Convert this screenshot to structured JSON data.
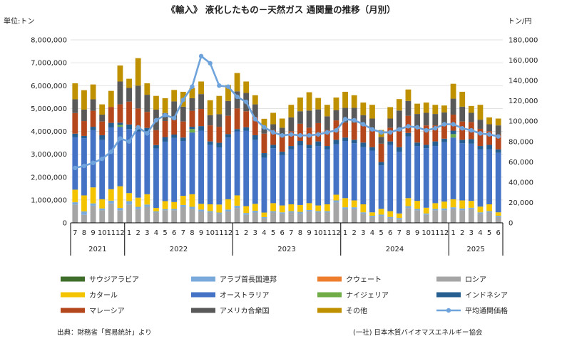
{
  "chart_data": {
    "type": "bar",
    "title": "《輸入》 液化したもの－天然ガス 通関量の推移（月別）",
    "ylabel_left": "単位:トン",
    "ylabel_right": "トン/円",
    "ylim_left": [
      0,
      8000000
    ],
    "ylim_right": [
      0,
      180000
    ],
    "left_ticks": [
      "0",
      "1,000,000",
      "2,000,000",
      "3,000,000",
      "4,000,000",
      "5,000,000",
      "6,000,000",
      "7,000,000",
      "8,000,000"
    ],
    "right_ticks": [
      "0",
      "20,000",
      "40,000",
      "60,000",
      "80,000",
      "100,000",
      "120,000",
      "140,000",
      "160,000",
      "180,000"
    ],
    "categories": [
      "7",
      "8",
      "9",
      "10",
      "11",
      "12",
      "1",
      "2",
      "3",
      "4",
      "5",
      "6",
      "7",
      "8",
      "9",
      "10",
      "11",
      "12",
      "1",
      "2",
      "3",
      "4",
      "5",
      "6",
      "7",
      "8",
      "9",
      "10",
      "11",
      "12",
      "1",
      "2",
      "3",
      "4",
      "5",
      "6",
      "7",
      "8",
      "9",
      "10",
      "11",
      "12",
      "1",
      "2",
      "3",
      "4",
      "5",
      "6"
    ],
    "years": [
      {
        "label": "2021",
        "count": 6
      },
      {
        "label": "2022",
        "count": 12
      },
      {
        "label": "2023",
        "count": 12
      },
      {
        "label": "2024",
        "count": 12
      },
      {
        "label": "2025",
        "count": 6
      }
    ],
    "stack_order": [
      "ロシア",
      "アラブ首長国連邦",
      "カタール",
      "オーストラリア",
      "サウジアラビア",
      "ナイジェリア",
      "インドネシア",
      "マレーシア",
      "アメリカ合衆国",
      "その他"
    ],
    "series": [
      {
        "name": "サウジアラビア",
        "color": "#3f6e2a",
        "values": [
          0,
          0,
          0,
          0,
          0,
          0,
          0,
          0,
          0,
          0,
          0,
          0,
          0,
          0,
          0,
          0,
          0,
          0,
          0,
          0,
          0,
          0,
          0,
          0,
          0,
          0,
          0,
          0,
          0,
          0,
          0,
          0,
          0,
          0,
          0,
          0,
          0,
          0,
          0,
          0,
          0,
          0,
          0,
          0,
          0,
          0,
          0,
          0
        ]
      },
      {
        "name": "アラブ首長国連邦",
        "color": "#7aa9dc",
        "values": [
          100000,
          150000,
          100000,
          80000,
          120000,
          100000,
          150000,
          100000,
          100000,
          50000,
          50000,
          60000,
          80000,
          100000,
          80000,
          60000,
          50000,
          80000,
          100000,
          80000,
          80000,
          50000,
          60000,
          60000,
          60000,
          80000,
          60000,
          60000,
          60000,
          80000,
          80000,
          80000,
          60000,
          60000,
          60000,
          60000,
          60000,
          80000,
          60000,
          60000,
          60000,
          80000,
          80000,
          80000,
          60000,
          60000,
          60000,
          60000
        ]
      },
      {
        "name": "クウェート",
        "color": "#ee7d2e",
        "values": [
          0,
          0,
          0,
          0,
          0,
          0,
          0,
          0,
          0,
          0,
          0,
          0,
          0,
          0,
          0,
          0,
          0,
          0,
          0,
          0,
          0,
          0,
          0,
          0,
          0,
          0,
          0,
          0,
          0,
          0,
          0,
          0,
          0,
          0,
          0,
          0,
          0,
          0,
          0,
          0,
          0,
          0,
          0,
          0,
          0,
          0,
          0,
          0
        ]
      },
      {
        "name": "ロシア",
        "color": "#a5a5a5",
        "values": [
          800000,
          350000,
          750000,
          550000,
          850000,
          550000,
          800000,
          600000,
          700000,
          450000,
          550000,
          550000,
          700000,
          600000,
          500000,
          450000,
          400000,
          500000,
          650000,
          350000,
          450000,
          200000,
          450000,
          400000,
          450000,
          400000,
          500000,
          450000,
          450000,
          900000,
          600000,
          600000,
          400000,
          250000,
          300000,
          200000,
          150000,
          650000,
          550000,
          350000,
          550000,
          550000,
          600000,
          550000,
          600000,
          400000,
          450000,
          250000
        ]
      },
      {
        "name": "カタール",
        "color": "#f5c400",
        "values": [
          550000,
          700000,
          700000,
          400000,
          500000,
          950000,
          350000,
          400000,
          450000,
          150000,
          350000,
          300000,
          400000,
          550000,
          250000,
          300000,
          350000,
          450000,
          450000,
          300000,
          300000,
          200000,
          350000,
          300000,
          300000,
          300000,
          300000,
          250000,
          300000,
          250000,
          400000,
          300000,
          350000,
          150000,
          250000,
          250000,
          200000,
          350000,
          350000,
          250000,
          250000,
          300000,
          350000,
          350000,
          300000,
          250000,
          300000,
          150000
        ]
      },
      {
        "name": "オーストラリア",
        "color": "#4472c4",
        "values": [
          2300000,
          2500000,
          2500000,
          2600000,
          2700000,
          2600000,
          2800000,
          2900000,
          2700000,
          2600000,
          2600000,
          2800000,
          2400000,
          2700000,
          3200000,
          2600000,
          2500000,
          2700000,
          2800000,
          3300000,
          2800000,
          2400000,
          2400000,
          2200000,
          2400000,
          2600000,
          2400000,
          2600000,
          2400000,
          2200000,
          2500000,
          2500000,
          2500000,
          2700000,
          1900000,
          2900000,
          2700000,
          2700000,
          2400000,
          2600000,
          2500000,
          2600000,
          2700000,
          2500000,
          2500000,
          2500000,
          2400000,
          2600000
        ]
      },
      {
        "name": "ナイジェリア",
        "color": "#70ad47",
        "values": [
          0,
          0,
          0,
          0,
          0,
          80000,
          0,
          0,
          0,
          0,
          0,
          0,
          0,
          150000,
          0,
          0,
          0,
          0,
          0,
          0,
          0,
          0,
          0,
          0,
          0,
          0,
          0,
          0,
          0,
          0,
          0,
          0,
          0,
          0,
          0,
          0,
          0,
          0,
          0,
          0,
          0,
          0,
          150000,
          0,
          0,
          0,
          0,
          0
        ]
      },
      {
        "name": "インドネシア",
        "color": "#255e91",
        "values": [
          150000,
          100000,
          150000,
          200000,
          200000,
          100000,
          200000,
          150000,
          200000,
          150000,
          200000,
          150000,
          150000,
          100000,
          200000,
          150000,
          200000,
          150000,
          100000,
          150000,
          200000,
          200000,
          150000,
          150000,
          150000,
          200000,
          150000,
          200000,
          150000,
          200000,
          150000,
          150000,
          200000,
          150000,
          150000,
          150000,
          200000,
          150000,
          150000,
          150000,
          200000,
          150000,
          150000,
          150000,
          200000,
          150000,
          200000,
          150000
        ]
      },
      {
        "name": "マレーシア",
        "color": "#b5471c",
        "values": [
          900000,
          650000,
          700000,
          600000,
          700000,
          800000,
          1000000,
          850000,
          700000,
          650000,
          700000,
          650000,
          700000,
          700000,
          750000,
          700000,
          700000,
          800000,
          900000,
          700000,
          800000,
          850000,
          650000,
          650000,
          650000,
          750000,
          750000,
          800000,
          700000,
          850000,
          650000,
          750000,
          750000,
          700000,
          800000,
          600000,
          700000,
          750000,
          700000,
          850000,
          700000,
          650000,
          700000,
          800000,
          750000,
          750000,
          600000,
          650000
        ]
      },
      {
        "name": "アメリカ合衆国",
        "color": "#595959",
        "values": [
          600000,
          500000,
          500000,
          300000,
          0,
          1000000,
          600000,
          1000000,
          750000,
          900000,
          350000,
          800000,
          650000,
          550000,
          650000,
          450000,
          550000,
          650000,
          750000,
          800000,
          550000,
          250000,
          250000,
          400000,
          600000,
          550000,
          750000,
          600000,
          600000,
          450000,
          650000,
          650000,
          450000,
          550000,
          300000,
          400000,
          900000,
          650000,
          550000,
          550000,
          500000,
          500000,
          700000,
          650000,
          400000,
          400000,
          300000,
          400000
        ]
      },
      {
        "name": "その他",
        "color": "#bf9000",
        "values": [
          700000,
          850000,
          650000,
          450000,
          700000,
          700000,
          400000,
          1200000,
          500000,
          600000,
          650000,
          500000,
          650000,
          450000,
          550000,
          650000,
          800000,
          700000,
          800000,
          500000,
          400000,
          400000,
          500000,
          400000,
          550000,
          600000,
          800000,
          500000,
          500000,
          550000,
          700000,
          550000,
          550000,
          600000,
          300000,
          500000,
          500000,
          500000,
          450000,
          450000,
          400000,
          300000,
          650000,
          650000,
          300000,
          650000,
          300000,
          300000
        ]
      }
    ],
    "line_series": {
      "name": "平均通関価格",
      "color": "#6fa3dc",
      "values": [
        54000,
        56000,
        59000,
        63000,
        70000,
        83000,
        80000,
        94000,
        88000,
        101000,
        106000,
        103000,
        121000,
        134000,
        164000,
        157000,
        135000,
        134000,
        124000,
        119000,
        102000,
        94000,
        89000,
        86000,
        87000,
        86000,
        86000,
        87000,
        89000,
        91000,
        102000,
        101000,
        97000,
        92000,
        89000,
        89000,
        92000,
        95000,
        94000,
        91000,
        93000,
        97000,
        97000,
        93000,
        91000,
        88000,
        87000,
        85000
      ]
    },
    "legend": {
      "placement": "bottom",
      "items": [
        "サウジアラビア",
        "アラブ首長国連邦",
        "クウェート",
        "ロシア",
        "カタール",
        "オーストラリア",
        "ナイジェリア",
        "インドネシア",
        "マレーシア",
        "アメリカ合衆国",
        "その他",
        "平均通関価格"
      ]
    },
    "source_note": "出典：財務省「貿易統計」より",
    "credit_note": "(一社) 日本木質バイオマスエネルギー協会"
  }
}
